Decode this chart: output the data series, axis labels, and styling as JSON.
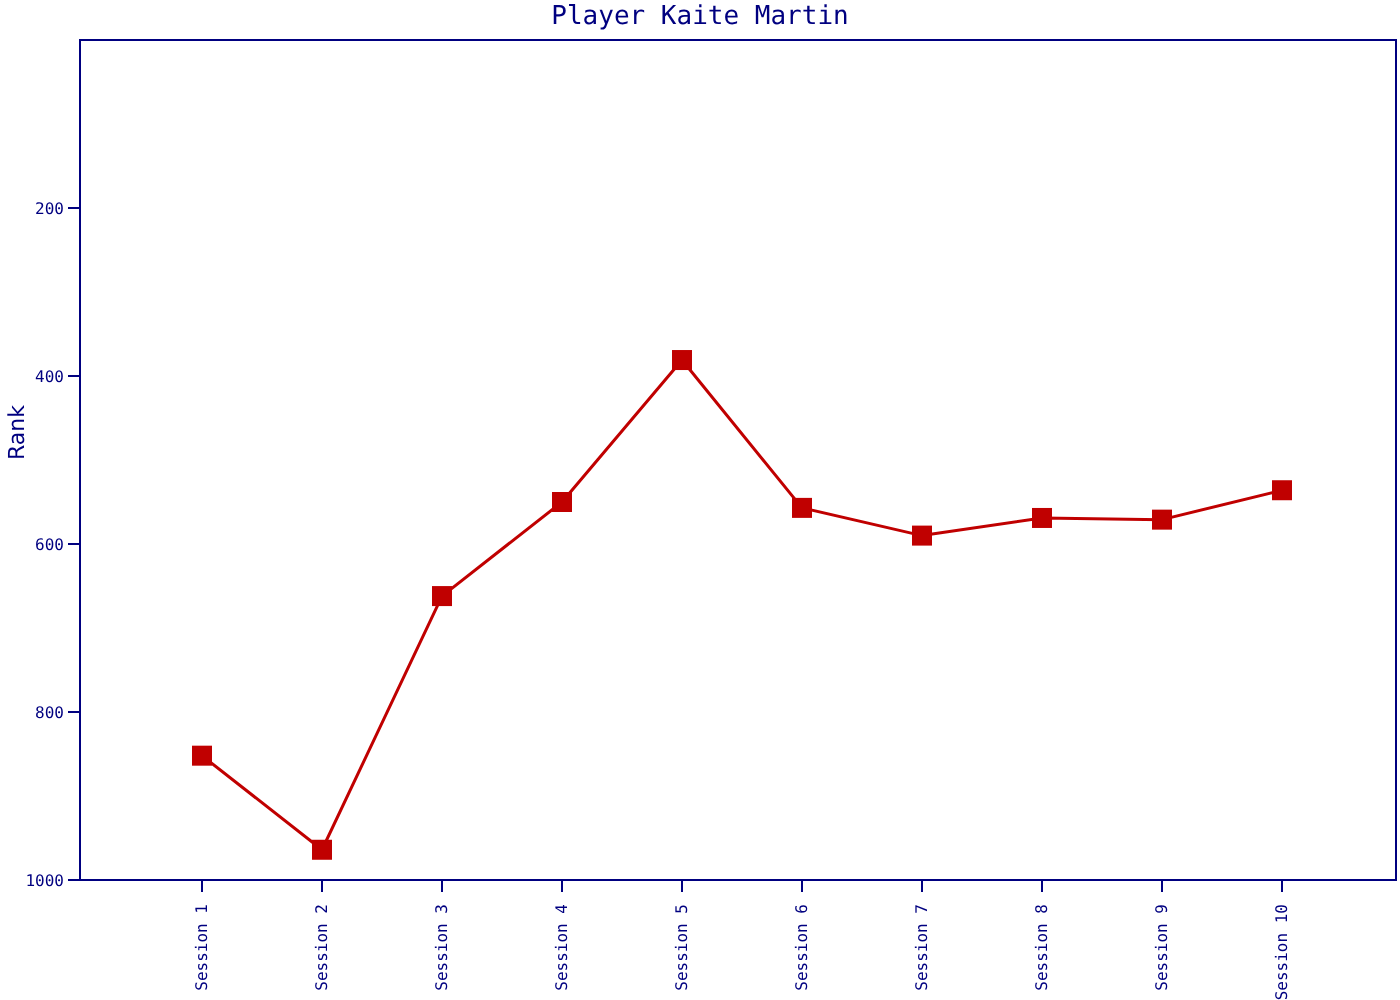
{
  "chart_data": {
    "type": "line",
    "title": "Player Kaite Martin",
    "ylabel": "Rank",
    "categories": [
      "Session 1",
      "Session 2",
      "Session 3",
      "Session 4",
      "Session 5",
      "Session 6",
      "Session 7",
      "Session 8",
      "Session 9",
      "Session 10"
    ],
    "series": [
      {
        "color": "#c00000",
        "values": [
          852,
          964,
          662,
          550,
          381,
          557,
          590,
          569,
          571,
          536
        ]
      }
    ],
    "ylim": [
      1000,
      0
    ],
    "yticks": [
      200,
      400,
      600,
      800,
      1000
    ],
    "marker": "square",
    "grid": false,
    "legend": false
  }
}
